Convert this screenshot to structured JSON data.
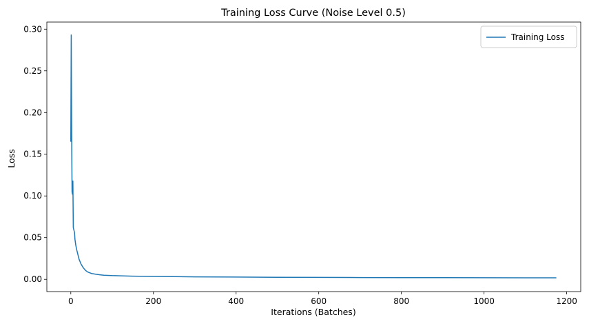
{
  "chart_data": {
    "type": "line",
    "title": "Training Loss Curve (Noise Level 0.5)",
    "xlabel": "Iterations (Batches)",
    "ylabel": "Loss",
    "xlim": [
      -58,
      1234
    ],
    "ylim": [
      -0.0147,
      0.3085
    ],
    "xticks": [
      0,
      200,
      400,
      600,
      800,
      1000,
      1200
    ],
    "xtick_labels": [
      "0",
      "200",
      "400",
      "600",
      "800",
      "1000",
      "1200"
    ],
    "yticks": [
      0.0,
      0.05,
      0.1,
      0.15,
      0.2,
      0.25,
      0.3
    ],
    "ytick_labels": [
      "0.00",
      "0.05",
      "0.10",
      "0.15",
      "0.20",
      "0.25",
      "0.30"
    ],
    "grid": false,
    "legend_position": "top-right",
    "series": [
      {
        "name": "Training Loss",
        "color": "#1f77b4",
        "x": [
          0,
          1,
          2,
          3,
          4,
          5,
          6,
          7,
          8,
          9,
          10,
          12,
          14,
          16,
          18,
          20,
          25,
          30,
          35,
          40,
          50,
          60,
          70,
          80,
          100,
          120,
          150,
          200,
          250,
          300,
          400,
          500,
          600,
          700,
          800,
          900,
          1000,
          1100,
          1175
        ],
        "y": [
          0.165,
          0.293,
          0.18,
          0.105,
          0.102,
          0.118,
          0.062,
          0.06,
          0.058,
          0.056,
          0.048,
          0.041,
          0.036,
          0.032,
          0.028,
          0.024,
          0.018,
          0.014,
          0.011,
          0.009,
          0.007,
          0.0062,
          0.0055,
          0.005,
          0.0045,
          0.0042,
          0.0038,
          0.0035,
          0.0032,
          0.003,
          0.0027,
          0.0025,
          0.0023,
          0.0022,
          0.0021,
          0.002,
          0.0019,
          0.0018,
          0.0018
        ]
      }
    ]
  }
}
